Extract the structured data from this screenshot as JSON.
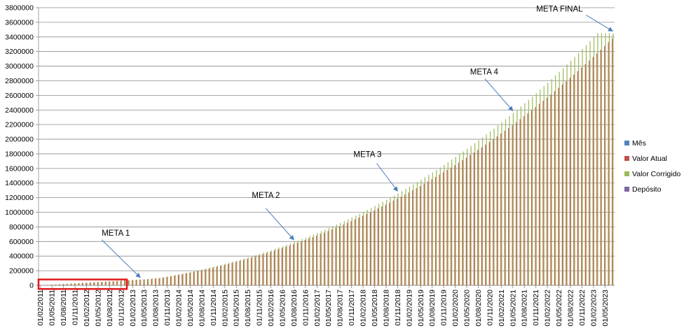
{
  "chart_data": {
    "type": "bar",
    "title": "",
    "xlabel": "",
    "ylabel": "",
    "ylim": [
      0,
      3800000
    ],
    "y_ticks": [
      0,
      200000,
      400000,
      600000,
      800000,
      1000000,
      1200000,
      1400000,
      1600000,
      1800000,
      2000000,
      2200000,
      2400000,
      2600000,
      2800000,
      3000000,
      3200000,
      3400000,
      3600000,
      3800000
    ],
    "y_tick_labels": [
      "0",
      "200000",
      "400000",
      "600000",
      "800000",
      "1000000",
      "1200000",
      "1400000",
      "1600000",
      "1800000",
      "2000000",
      "2200000",
      "2400000",
      "2600000",
      "2800000",
      "3000000",
      "3200000",
      "3400000",
      "3600000",
      "3800000"
    ],
    "grid": true,
    "legend_position": "right",
    "categories": [
      "01/02/2011",
      "01/03/2011",
      "01/04/2011",
      "01/05/2011",
      "01/06/2011",
      "01/07/2011",
      "01/08/2011",
      "01/09/2011",
      "01/10/2011",
      "01/11/2011",
      "01/12/2011",
      "01/01/2012",
      "01/02/2012",
      "01/03/2012",
      "01/04/2012",
      "01/05/2012",
      "01/06/2012",
      "01/07/2012",
      "01/08/2012",
      "01/09/2012",
      "01/10/2012",
      "01/11/2012",
      "01/12/2012",
      "01/01/2013",
      "01/02/2013",
      "01/03/2013",
      "01/04/2013",
      "01/05/2013",
      "01/06/2013",
      "01/07/2013",
      "01/08/2013",
      "01/09/2013",
      "01/10/2013",
      "01/11/2013",
      "01/12/2013",
      "01/01/2014",
      "01/02/2014",
      "01/03/2014",
      "01/04/2014",
      "01/05/2014",
      "01/06/2014",
      "01/07/2014",
      "01/08/2014",
      "01/09/2014",
      "01/10/2014",
      "01/11/2014",
      "01/12/2014",
      "01/01/2015",
      "01/02/2015",
      "01/03/2015",
      "01/04/2015",
      "01/05/2015",
      "01/06/2015",
      "01/07/2015",
      "01/08/2015",
      "01/09/2015",
      "01/10/2015",
      "01/11/2015",
      "01/12/2015",
      "01/01/2016",
      "01/02/2016",
      "01/03/2016",
      "01/04/2016",
      "01/05/2016",
      "01/06/2016",
      "01/07/2016",
      "01/08/2016",
      "01/09/2016",
      "01/10/2016",
      "01/11/2016",
      "01/12/2016",
      "01/01/2017",
      "01/02/2017",
      "01/03/2017",
      "01/04/2017",
      "01/05/2017",
      "01/06/2017",
      "01/07/2017",
      "01/08/2017",
      "01/09/2017",
      "01/10/2017",
      "01/11/2017",
      "01/12/2017",
      "01/01/2018",
      "01/02/2018",
      "01/03/2018",
      "01/04/2018",
      "01/05/2018",
      "01/06/2018",
      "01/07/2018",
      "01/08/2018",
      "01/09/2018",
      "01/10/2018",
      "01/11/2018",
      "01/12/2018",
      "01/01/2019",
      "01/02/2019",
      "01/03/2019",
      "01/04/2019",
      "01/05/2019",
      "01/06/2019",
      "01/07/2019",
      "01/08/2019",
      "01/09/2019",
      "01/10/2019",
      "01/11/2019",
      "01/12/2019",
      "01/01/2020",
      "01/02/2020",
      "01/03/2020",
      "01/04/2020",
      "01/05/2020",
      "01/06/2020",
      "01/07/2020",
      "01/08/2020",
      "01/09/2020",
      "01/10/2020",
      "01/11/2020",
      "01/12/2020",
      "01/01/2021",
      "01/02/2021",
      "01/03/2021",
      "01/04/2021",
      "01/05/2021",
      "01/06/2021",
      "01/07/2021",
      "01/08/2021",
      "01/09/2021",
      "01/10/2021",
      "01/11/2021",
      "01/12/2021",
      "01/01/2022",
      "01/02/2022",
      "01/03/2022",
      "01/04/2022",
      "01/05/2022",
      "01/06/2022",
      "01/07/2022",
      "01/08/2022",
      "01/09/2022",
      "01/10/2022",
      "01/11/2022",
      "01/12/2022",
      "01/01/2023",
      "01/02/2023",
      "01/03/2023",
      "01/04/2023",
      "01/05/2023",
      "01/06/2023",
      "01/07/2023"
    ],
    "x_tick_labels": [
      "01/02/2011",
      "01/05/2011",
      "01/08/2011",
      "01/11/2011",
      "01/02/2012",
      "01/05/2012",
      "01/08/2012",
      "01/11/2012",
      "01/02/2013",
      "01/05/2013",
      "01/08/2013",
      "01/11/2013",
      "01/02/2014",
      "01/05/2014",
      "01/08/2014",
      "01/11/2014",
      "01/02/2015",
      "01/05/2015",
      "01/08/2015",
      "01/11/2015",
      "01/02/2016",
      "01/05/2016",
      "01/08/2016",
      "01/11/2016",
      "01/02/2017",
      "01/05/2017",
      "01/08/2017",
      "01/11/2017",
      "01/02/2018",
      "01/05/2018",
      "01/08/2018",
      "01/11/2018",
      "01/02/2019",
      "01/05/2019",
      "01/08/2019",
      "01/11/2019",
      "01/02/2020",
      "01/05/2020",
      "01/08/2020",
      "01/11/2020",
      "01/02/2021",
      "01/05/2021",
      "01/08/2021",
      "01/11/2021",
      "01/02/2022",
      "01/05/2022",
      "01/08/2022",
      "01/11/2022",
      "01/02/2023",
      "01/05/2023"
    ],
    "series": [
      {
        "name": "Mês",
        "color": "#4f81bd",
        "values": [
          1,
          2,
          3,
          4,
          5,
          6,
          7,
          8,
          9,
          10,
          11,
          12,
          13,
          14,
          15,
          16,
          17,
          18,
          19,
          20,
          21,
          22,
          23,
          24,
          25,
          26,
          27,
          28,
          29,
          30,
          31,
          32,
          33,
          34,
          35,
          36,
          37,
          38,
          39,
          40,
          41,
          42,
          43,
          44,
          45,
          46,
          47,
          48,
          49,
          50,
          51,
          52,
          53,
          54,
          55,
          56,
          57,
          58,
          59,
          60,
          61,
          62,
          63,
          64,
          65,
          66,
          67,
          68,
          69,
          70,
          71,
          72,
          73,
          74,
          75,
          76,
          77,
          78,
          79,
          80,
          81,
          82,
          83,
          84,
          85,
          86,
          87,
          88,
          89,
          90,
          91,
          92,
          93,
          94,
          95,
          96,
          97,
          98,
          99,
          100,
          101,
          102,
          103,
          104,
          105,
          106,
          107,
          108,
          109,
          110,
          111,
          112,
          113,
          114,
          115,
          116,
          117,
          118,
          119,
          120,
          121,
          122,
          123,
          124,
          125,
          126,
          127,
          128,
          129,
          130,
          131,
          132,
          133,
          134,
          135,
          136,
          137,
          138,
          139,
          140,
          141,
          142,
          143,
          144,
          145,
          146,
          147,
          148,
          149,
          150
        ]
      },
      {
        "name": "Valor Atual",
        "color": "#c0504d",
        "values": [
          0,
          3000,
          6000,
          9000,
          12000,
          15000,
          18000,
          21000,
          24000,
          27000,
          30000,
          33000,
          36000,
          39000,
          42000,
          45000,
          48000,
          51000,
          54000,
          57000,
          60000,
          63000,
          66000,
          69000,
          72000,
          75000,
          78000,
          81000,
          85000,
          89000,
          93000,
          97000,
          105700,
          114700,
          123900,
          133400,
          143200,
          153200,
          163500,
          174000,
          184800,
          195900,
          207200,
          218800,
          230700,
          242900,
          255300,
          268000,
          281000,
          294300,
          307800,
          321600,
          335700,
          350100,
          364800,
          379800,
          395100,
          410700,
          426600,
          442800,
          459300,
          476100,
          493200,
          510600,
          528300,
          546300,
          564700,
          583400,
          602400,
          621700,
          641300,
          661300,
          681600,
          702200,
          723200,
          744500,
          766100,
          788100,
          810400,
          833000,
          856000,
          879300,
          903000,
          927000,
          951400,
          976100,
          1001200,
          1026600,
          1052400,
          1078500,
          1105000,
          1131800,
          1159000,
          1186600,
          1214600,
          1242900,
          1271600,
          1300700,
          1330100,
          1359900,
          1390100,
          1420700,
          1451700,
          1483000,
          1514800,
          1546900,
          1579400,
          1612300,
          1645600,
          1679300,
          1713400,
          1747900,
          1782800,
          1818100,
          1853800,
          1890000,
          1926500,
          1963400,
          2000800,
          2038600,
          2076800,
          2115400,
          2154400,
          2193900,
          2233800,
          2274100,
          2314900,
          2356100,
          2397700,
          2439800,
          2482300,
          2525300,
          2568700,
          2612600,
          2656900,
          2701700,
          2746900,
          2792600,
          2838800,
          2885400,
          2932500,
          2980100,
          3028100,
          3076700,
          3125700,
          3175200,
          3225200,
          3275700,
          3326700,
          3378200
        ]
      },
      {
        "name": "Valor Corrigido",
        "color": "#9bbb59",
        "values": [
          0,
          3000,
          6000,
          9000,
          12000,
          15000,
          18000,
          21000,
          24000,
          27000,
          30000,
          33000,
          36000,
          39000,
          42000,
          45000,
          48000,
          51000,
          54000,
          57000,
          60000,
          63000,
          66000,
          69000,
          72000,
          75000,
          78000,
          81000,
          87000,
          93000,
          99000,
          105000,
          112000,
          121400,
          131000,
          140900,
          151100,
          161500,
          172200,
          183200,
          194400,
          206000,
          217800,
          229900,
          242300,
          255000,
          268000,
          281300,
          294900,
          308800,
          323000,
          337500,
          352300,
          367500,
          382900,
          398700,
          414800,
          431200,
          448000,
          465000,
          482400,
          500100,
          518200,
          536600,
          555400,
          574500,
          593900,
          613700,
          633900,
          654400,
          675300,
          696500,
          718100,
          740000,
          762300,
          785000,
          808000,
          831400,
          855200,
          879300,
          903900,
          928800,
          954100,
          979800,
          1005900,
          1032400,
          1059300,
          1086600,
          1114300,
          1142400,
          1170900,
          1199800,
          1229100,
          1258800,
          1289000,
          1319600,
          1350600,
          1382000,
          1413900,
          1446200,
          1478900,
          1512100,
          1545700,
          1579800,
          1614300,
          1649300,
          1684700,
          1720600,
          1756900,
          1793700,
          1831000,
          1868700,
          1906900,
          1945600,
          1984700,
          2024300,
          2064400,
          2105000,
          2146100,
          2187700,
          2229800,
          2272400,
          2315500,
          2359100,
          2403200,
          2447800,
          2492900,
          2538500,
          2584600,
          2631300,
          2678400,
          2726100,
          2774300,
          2823000,
          2872300,
          2922100,
          2972400,
          3023300,
          3074700,
          3126700,
          3179200,
          3232300,
          3285900,
          3340100,
          3394800,
          3450100,
          3450100,
          3450100,
          3450100,
          3450100
        ]
      },
      {
        "name": "Depósito",
        "color": "#8064a2",
        "values": [
          3000,
          3000,
          3000,
          3000,
          3000,
          3000,
          3000,
          3000,
          3000,
          3000,
          3000,
          3000,
          3000,
          3000,
          3000,
          3000,
          3000,
          3000,
          3000,
          3000,
          3000,
          3000,
          3000,
          3000,
          3000,
          3000,
          3000,
          3000,
          3000,
          3000,
          3000,
          3000,
          3000,
          3000,
          3000,
          3000,
          3000,
          3000,
          3000,
          3000,
          3000,
          3000,
          3000,
          3000,
          3000,
          3000,
          3000,
          3000,
          3000,
          3000,
          3000,
          3000,
          3000,
          3000,
          3000,
          3000,
          3000,
          3000,
          3000,
          3000,
          3000,
          3000,
          3000,
          3000,
          3000,
          3000,
          3000,
          3000,
          3000,
          3000,
          3000,
          3000,
          3000,
          3000,
          3000,
          3000,
          3000,
          3000,
          3000,
          3000,
          3000,
          3000,
          3000,
          3000,
          3000,
          3000,
          3000,
          3000,
          3000,
          3000,
          3000,
          3000,
          3000,
          3000,
          3000,
          3000,
          3000,
          3000,
          3000,
          3000,
          3000,
          3000,
          3000,
          3000,
          3000,
          3000,
          3000,
          3000,
          3000,
          3000,
          3000,
          3000,
          3000,
          3000,
          3000,
          3000,
          3000,
          3000,
          3000,
          3000,
          3000,
          3000,
          3000,
          3000,
          3000,
          3000,
          3000,
          3000,
          3000,
          3000,
          3000,
          3000,
          3000,
          3000,
          3000,
          3000,
          3000,
          3000,
          3000,
          3000,
          3000,
          3000,
          3000,
          3000,
          3000,
          3000,
          3000,
          3000,
          3000,
          3000
        ]
      }
    ],
    "annotations": [
      {
        "text": "META 1",
        "category": "01/04/2013"
      },
      {
        "text": "META 2",
        "category": "01/08/2016"
      },
      {
        "text": "META 3",
        "category": "01/11/2018"
      },
      {
        "text": "META 4",
        "category": "01/05/2021"
      },
      {
        "text": "META FINAL",
        "category": "01/07/2023"
      }
    ],
    "highlight": {
      "from_category": "01/02/2011",
      "to_category": "01/12/2012",
      "y_from": -50000,
      "y_to": 80000,
      "color": "#e0191b"
    }
  }
}
